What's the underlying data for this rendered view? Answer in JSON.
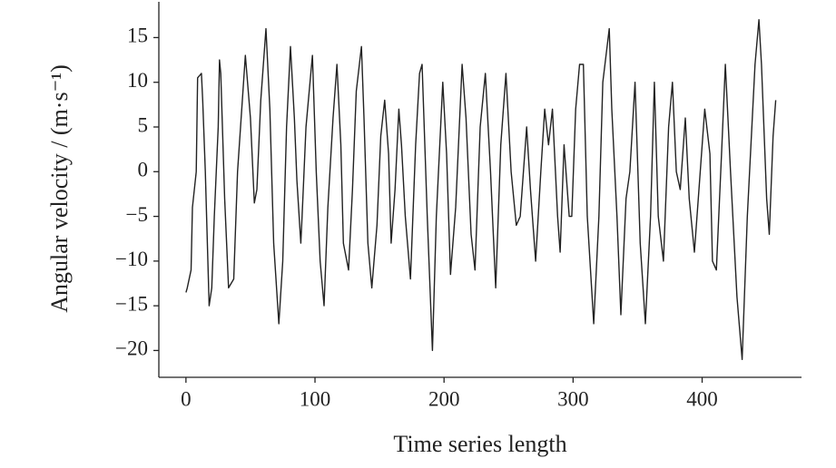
{
  "chart_data": {
    "type": "line",
    "xlabel": "Time series length",
    "ylabel": "Angular velocity / (m·s⁻¹)",
    "xlim": [
      -21,
      477
    ],
    "ylim": [
      -23,
      19
    ],
    "xticks": [
      0,
      100,
      200,
      300,
      400
    ],
    "yticks": [
      {
        "value": -20,
        "label": "−20"
      },
      {
        "value": -15,
        "label": "−15"
      },
      {
        "value": -10,
        "label": "−10"
      },
      {
        "value": -5,
        "label": "−5"
      },
      0,
      5,
      10,
      15
    ],
    "grid": false,
    "x": [
      0,
      1,
      4,
      5,
      8,
      9,
      12,
      13,
      15,
      17,
      18,
      20,
      22,
      25,
      26,
      27,
      30,
      33,
      37,
      40,
      46,
      50,
      53,
      55,
      58,
      62,
      65,
      68,
      72,
      75,
      78,
      81,
      84,
      86,
      89,
      90,
      93,
      98,
      101,
      104,
      107,
      110,
      114,
      117,
      120,
      122,
      126,
      129,
      132,
      136,
      138,
      141,
      144,
      148,
      151,
      154,
      157,
      159,
      162,
      165,
      167,
      170,
      174,
      178,
      181,
      183,
      187,
      191,
      194,
      199,
      202,
      205,
      209,
      214,
      217,
      221,
      224,
      228,
      232,
      236,
      240,
      244,
      248,
      252,
      256,
      259,
      264,
      267,
      271,
      275,
      278,
      281,
      284,
      288,
      290,
      293,
      297,
      299,
      302,
      305,
      308,
      311,
      316,
      320,
      323,
      328,
      330,
      334,
      337,
      341,
      344,
      348,
      352,
      356,
      360,
      363,
      366,
      370,
      374,
      377,
      380,
      383,
      387,
      390,
      394,
      397,
      402,
      406,
      408,
      411,
      415,
      418,
      422,
      427,
      431,
      435,
      441,
      444,
      446,
      450,
      452,
      455,
      457
    ],
    "series": [
      {
        "color": "#222222",
        "values": [
          -13.5,
          -13,
          -11,
          -4,
          0,
          10.5,
          11,
          8,
          0,
          -10,
          -15,
          -13,
          -5,
          5,
          12.5,
          11,
          -3,
          -13,
          -12,
          0,
          13,
          6,
          -3.5,
          -2,
          8,
          16,
          7,
          -8,
          -17,
          -10,
          5,
          14,
          6,
          -1,
          -8,
          -5,
          5,
          13,
          0,
          -10,
          -15,
          -4,
          6,
          12,
          3,
          -8,
          -11,
          -2,
          9,
          14,
          6,
          -8,
          -13,
          -6,
          4,
          8,
          2,
          -8,
          -2,
          7,
          3,
          -5,
          -12,
          3,
          11,
          12,
          -5,
          -20,
          -5,
          10,
          2,
          -11.5,
          -4,
          12,
          6,
          -7,
          -11,
          5,
          11,
          0,
          -13,
          3,
          11,
          0,
          -6,
          -5,
          5,
          -2,
          -10,
          0,
          7,
          3,
          7,
          -5,
          -9,
          3,
          -5,
          -5,
          7,
          12,
          12,
          -5,
          -17,
          -5,
          10,
          16,
          7,
          -5,
          -16,
          -3,
          0,
          10,
          -8,
          -17,
          -5,
          10,
          -5,
          -10,
          5,
          10,
          0,
          -2,
          6,
          -3,
          -9,
          -3,
          7,
          2,
          -10,
          -11,
          2,
          12,
          0,
          -14,
          -21,
          -5,
          12,
          17,
          12,
          -3,
          -7,
          4,
          8
        ]
      }
    ]
  }
}
